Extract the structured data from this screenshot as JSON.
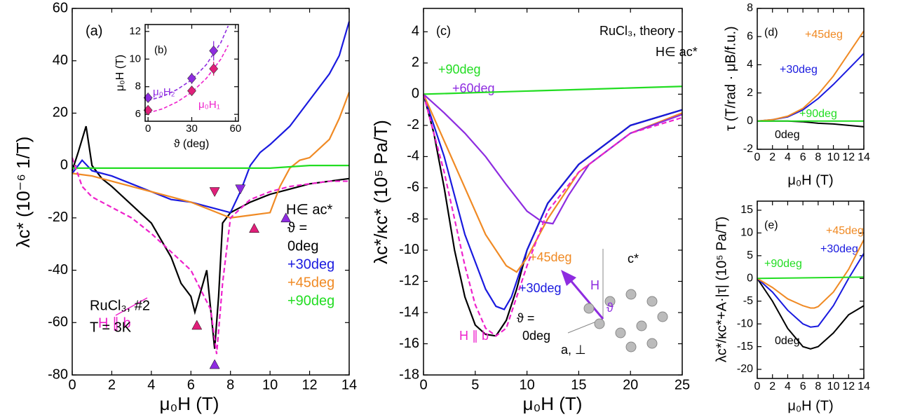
{
  "chart_data": [
    {
      "type": "line",
      "ylabel": "λc* (10⁻⁶ 1/T)",
      "xlabel": "μ₀H (T)",
      "xlim": [
        0,
        14
      ],
      "xticks": [
        0,
        2,
        4,
        6,
        8,
        10,
        12,
        14
      ],
      "ylim": [
        -80,
        60
      ],
      "yticks": [
        -80,
        -60,
        -40,
        -20,
        0,
        20,
        40,
        60
      ],
      "series": [
        {
          "name": "0deg",
          "color": "#000000",
          "x": [
            0,
            0.3,
            0.7,
            1,
            1.5,
            2,
            3,
            4,
            5,
            5.5,
            6,
            6.2,
            6.5,
            6.8,
            7,
            7.2,
            7.4,
            7.6,
            8,
            8.5,
            9,
            10,
            11,
            12,
            13,
            14
          ],
          "values": [
            -2,
            5,
            15,
            0,
            -5,
            -8,
            -15,
            -22,
            -35,
            -45,
            -50,
            -56,
            -48,
            -40,
            -55,
            -70,
            -50,
            -22,
            -18,
            -16,
            -14,
            -11,
            -9,
            -7,
            -6,
            -5
          ]
        },
        {
          "name": "+30deg",
          "color": "#1a1adf",
          "x": [
            0,
            0.5,
            1,
            2,
            3,
            4,
            5,
            6,
            7,
            8,
            8.5,
            9,
            9.5,
            10,
            11,
            12,
            13,
            13.5,
            14
          ],
          "values": [
            -3,
            2,
            -2,
            -4,
            -7,
            -10,
            -13,
            -14,
            -16,
            -18,
            -10,
            0,
            5,
            8,
            15,
            25,
            35,
            42,
            55
          ]
        },
        {
          "name": "+45deg",
          "color": "#f08a24",
          "x": [
            0,
            1,
            2,
            3,
            4,
            5,
            6,
            7,
            8,
            9,
            10,
            10.5,
            11,
            11.5,
            12,
            13,
            13.5,
            14
          ],
          "values": [
            -3,
            -4,
            -6,
            -8,
            -10,
            -12,
            -14,
            -17,
            -20,
            -19,
            -18,
            -8,
            -1,
            2,
            3,
            10,
            18,
            28
          ]
        },
        {
          "name": "+90deg",
          "color": "#22dd22",
          "x": [
            0,
            2,
            4,
            6,
            8,
            10,
            12,
            14
          ],
          "values": [
            -1,
            -1,
            -1,
            -1,
            -1,
            -1,
            0,
            0
          ]
        },
        {
          "name": "H ∥ b",
          "color": "#ee22cc",
          "dash": true,
          "x": [
            0,
            0.5,
            1,
            2,
            3,
            4,
            5,
            6,
            7,
            7.3,
            7.6,
            8,
            9,
            10,
            11,
            12,
            13,
            14
          ],
          "values": [
            3,
            -8,
            -12,
            -16,
            -20,
            -26,
            -33,
            -40,
            -55,
            -72,
            -45,
            -20,
            -13,
            -10,
            -8,
            -7,
            -6,
            -6
          ]
        }
      ],
      "markers": [
        {
          "x": 6.3,
          "y": -61,
          "color": "#e0207a",
          "dir": "up"
        },
        {
          "x": 7.2,
          "y": -10,
          "color": "#e0207a",
          "dir": "down"
        },
        {
          "x": 9.2,
          "y": -24,
          "color": "#e0207a",
          "dir": "up"
        },
        {
          "x": 7.2,
          "y": -76,
          "color": "#8e2ce0",
          "dir": "up"
        },
        {
          "x": 8.5,
          "y": -9,
          "color": "#8e2ce0",
          "dir": "down"
        },
        {
          "x": 10.8,
          "y": -20,
          "color": "#8e2ce0",
          "dir": "up"
        }
      ],
      "annotations": [
        {
          "text": "(a)",
          "color": "#000000"
        },
        {
          "text": "H∈ ac*",
          "color": "#000000"
        },
        {
          "text": "ϑ =",
          "color": "#000000"
        },
        {
          "text": "RuCl₃, #2",
          "color": "#000000"
        },
        {
          "text": "T = 3K",
          "color": "#000000"
        }
      ]
    },
    {
      "type": "scatter",
      "ylabel": "μ₀H (T)",
      "xlabel": "ϑ (deg)",
      "xlim": [
        -2,
        62
      ],
      "xticks": [
        0,
        30,
        60
      ],
      "ylim": [
        5.5,
        12.5
      ],
      "yticks": [
        6,
        8,
        10,
        12
      ],
      "series": [
        {
          "color": "#8e2ce0",
          "x": [
            0,
            30,
            45
          ],
          "values": [
            7.2,
            8.6,
            10.6
          ],
          "errors": [
            0.3,
            0.4,
            0.7
          ]
        },
        {
          "color": "#e0207a",
          "x": [
            0,
            30,
            45
          ],
          "values": [
            6.3,
            7.7,
            9.3
          ],
          "errors": [
            0.2,
            0.3,
            0.5
          ]
        }
      ],
      "fits": [
        {
          "color": "#8e2ce0",
          "x": [
            0,
            10,
            20,
            30,
            40,
            50,
            55
          ],
          "values": [
            7.0,
            7.3,
            7.8,
            8.5,
            9.6,
            11.2,
            12.4
          ]
        },
        {
          "color": "#ee22cc",
          "x": [
            0,
            10,
            20,
            30,
            40,
            50,
            55
          ],
          "values": [
            6.1,
            6.4,
            6.9,
            7.6,
            8.6,
            10.0,
            11.0
          ]
        }
      ],
      "annotations": [
        {
          "text": "(b)",
          "color": "#000000"
        },
        {
          "text": "μ₀H₂",
          "color": "#8e2ce0"
        },
        {
          "text": "μ₀H₁",
          "color": "#ee22cc"
        }
      ]
    },
    {
      "type": "line",
      "ylabel": "λc*/κc* (10⁵ Pa/T)",
      "xlabel": "μ₀H (T)",
      "xlim": [
        0,
        25
      ],
      "xticks": [
        0,
        5,
        10,
        15,
        20,
        25
      ],
      "ylim": [
        -18,
        5.5
      ],
      "yticks": [
        -18,
        -16,
        -14,
        -12,
        -10,
        -8,
        -6,
        -4,
        -2,
        0,
        2,
        4
      ],
      "series": [
        {
          "name": "0deg",
          "color": "#000000",
          "x": [
            0,
            1,
            2,
            3,
            4,
            5,
            6,
            7,
            8,
            9,
            10,
            12,
            15,
            20,
            25
          ],
          "values": [
            0,
            -2.5,
            -6,
            -10,
            -13,
            -14.8,
            -15.4,
            -15.5,
            -14.5,
            -12.5,
            -10,
            -7,
            -4.5,
            -2,
            -1
          ]
        },
        {
          "name": "+30deg",
          "color": "#1a1adf",
          "x": [
            0,
            2,
            4,
            6,
            7,
            7.8,
            8.5,
            10,
            12,
            15,
            20,
            25
          ],
          "values": [
            0,
            -4,
            -9,
            -12.5,
            -13.6,
            -13.8,
            -13,
            -10,
            -7,
            -4.5,
            -2,
            -1
          ]
        },
        {
          "name": "+45deg",
          "color": "#f08a24",
          "x": [
            0,
            2,
            4,
            6,
            8,
            9,
            10,
            12,
            15,
            20,
            25
          ],
          "values": [
            0,
            -3,
            -6,
            -9,
            -11,
            -11.4,
            -10.5,
            -8,
            -5,
            -2.5,
            -1.2
          ]
        },
        {
          "name": "+60deg",
          "color": "#8e2ce0",
          "x": [
            0,
            2,
            4,
            6,
            8,
            10,
            11.5,
            12.5,
            14,
            16,
            20,
            25
          ],
          "values": [
            0,
            -1.2,
            -2.5,
            -4,
            -5.8,
            -7.5,
            -8.2,
            -8.3,
            -6.5,
            -4.5,
            -2.5,
            -1.3
          ]
        },
        {
          "name": "+90deg",
          "color": "#22dd22",
          "x": [
            0,
            5,
            10,
            15,
            20,
            25
          ],
          "values": [
            0,
            0.1,
            0.2,
            0.3,
            0.4,
            0.5
          ]
        },
        {
          "name": "H ∥ b",
          "color": "#ee22cc",
          "dash": true,
          "x": [
            0,
            2,
            4,
            5,
            6,
            7,
            8,
            9,
            10,
            12,
            15,
            20,
            25
          ],
          "values": [
            0,
            -5,
            -11,
            -13.5,
            -15,
            -15.5,
            -15,
            -13,
            -11,
            -7.5,
            -5,
            -2.5,
            -1.5
          ]
        }
      ],
      "annotations": [
        {
          "text": "(c)",
          "color": "#000000"
        },
        {
          "text": "RuCl₃, theory",
          "color": "#000000"
        },
        {
          "text": "H∈ ac*",
          "color": "#000000"
        },
        {
          "text": "ϑ =",
          "color": "#000000"
        },
        {
          "text": "H",
          "color": "#8e2ce0"
        },
        {
          "text": "c*",
          "color": "#000000"
        },
        {
          "text": "a, ⊥",
          "color": "#000000"
        },
        {
          "text": "ϑ",
          "color": "#8e2ce0"
        }
      ]
    },
    {
      "type": "line",
      "ylabel": "τ (T/rad · μB/f.u.)",
      "xlabel": "μ₀H (T)",
      "xlim": [
        0,
        14
      ],
      "xticks": [
        0,
        2,
        4,
        6,
        8,
        10,
        12,
        14
      ],
      "ylim": [
        -2,
        8
      ],
      "yticks": [
        -2,
        0,
        2,
        4,
        6,
        8
      ],
      "series": [
        {
          "name": "0deg",
          "color": "#000000",
          "x": [
            0,
            2,
            4,
            6,
            7,
            8,
            10,
            12,
            13,
            14
          ],
          "values": [
            0,
            0,
            0,
            -0.05,
            -0.1,
            -0.15,
            -0.2,
            -0.3,
            -0.35,
            -0.4
          ]
        },
        {
          "name": "+30deg",
          "color": "#1a1adf",
          "x": [
            0,
            2,
            4,
            6,
            8,
            10,
            12,
            14
          ],
          "values": [
            0,
            0.1,
            0.3,
            0.8,
            1.6,
            2.6,
            3.7,
            4.8
          ]
        },
        {
          "name": "+45deg",
          "color": "#f08a24",
          "x": [
            0,
            2,
            4,
            6,
            8,
            10,
            12,
            14
          ],
          "values": [
            0,
            0.1,
            0.35,
            0.9,
            1.9,
            3.2,
            4.8,
            6.4
          ]
        },
        {
          "name": "+90deg",
          "color": "#22dd22",
          "x": [
            0,
            14
          ],
          "values": [
            0,
            0
          ]
        }
      ],
      "annotations": [
        {
          "text": "(d)",
          "color": "#000000"
        }
      ]
    },
    {
      "type": "line",
      "ylabel": "λc*/κc*+A·|τ| (10⁵ Pa/T)",
      "xlabel": "μ₀H (T)",
      "xlim": [
        0,
        14
      ],
      "xticks": [
        0,
        2,
        4,
        6,
        8,
        10,
        12,
        14
      ],
      "ylim": [
        -22,
        17
      ],
      "yticks": [
        -20,
        -15,
        -10,
        -5,
        0,
        5,
        10,
        15
      ],
      "series": [
        {
          "name": "0deg",
          "color": "#000000",
          "x": [
            0,
            2,
            4,
            6,
            7,
            8,
            10,
            12,
            14
          ],
          "values": [
            0,
            -5,
            -11,
            -15,
            -15.5,
            -15,
            -12,
            -8,
            -6
          ]
        },
        {
          "name": "+30deg",
          "color": "#1a1adf",
          "x": [
            0,
            2,
            4,
            6,
            7,
            8,
            10,
            12,
            14
          ],
          "values": [
            0,
            -3,
            -7,
            -10,
            -10.7,
            -10.5,
            -6,
            0,
            5.5
          ]
        },
        {
          "name": "+45deg",
          "color": "#f08a24",
          "x": [
            0,
            2,
            4,
            6,
            7,
            7.5,
            8,
            10,
            12,
            14
          ],
          "values": [
            0,
            -2,
            -4.5,
            -6,
            -6.5,
            -6.5,
            -6.2,
            -3,
            2,
            8.5
          ]
        },
        {
          "name": "+90deg",
          "color": "#22dd22",
          "x": [
            0,
            14
          ],
          "values": [
            0,
            0.3
          ]
        }
      ],
      "annotations": [
        {
          "text": "(e)",
          "color": "#000000"
        }
      ]
    }
  ]
}
